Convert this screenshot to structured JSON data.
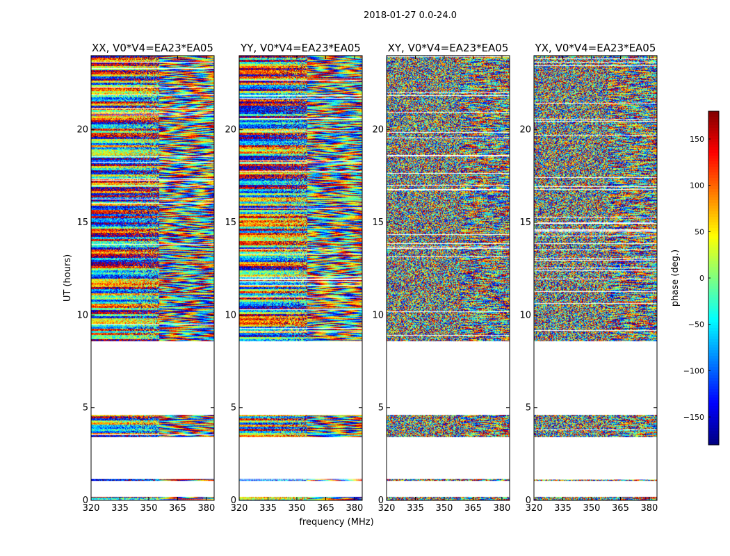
{
  "chart_data": {
    "type": "heatmap",
    "suptitle": "2018-01-27 0.0-24.0",
    "xlabel": "frequency (MHz)",
    "ylabel": "UT (hours)",
    "xlim": [
      320,
      384
    ],
    "ylim": [
      0,
      24
    ],
    "x_ticks": [
      320,
      335,
      350,
      365,
      380
    ],
    "y_ticks": [
      0,
      5,
      10,
      15,
      20
    ],
    "colormap": "jet",
    "colorbar": {
      "label": "phase (deg.)",
      "range": [
        -180,
        180
      ],
      "ticks": [
        150,
        100,
        50,
        0,
        -50,
        -100,
        -150
      ],
      "tick_labels": [
        "150",
        "100",
        "50",
        "0",
        "−50",
        "−100",
        "−150"
      ]
    },
    "data_ut_ranges_hours": [
      [
        0.0,
        0.2
      ],
      [
        1.05,
        1.15
      ],
      [
        3.4,
        4.6
      ],
      [
        8.6,
        24.0
      ]
    ],
    "panels": [
      {
        "title": "XX, V0*V4=EA23*EA05",
        "pol": "XX",
        "structured": true
      },
      {
        "title": "YY, V0*V4=EA23*EA05",
        "pol": "YY",
        "structured": true
      },
      {
        "title": "XY, V0*V4=EA23*EA05",
        "pol": "XY",
        "structured": false
      },
      {
        "title": "YX, V0*V4=EA23*EA05",
        "pol": "YX",
        "structured": false
      }
    ]
  },
  "colors": {
    "axes": "#000000",
    "background": "#ffffff"
  }
}
